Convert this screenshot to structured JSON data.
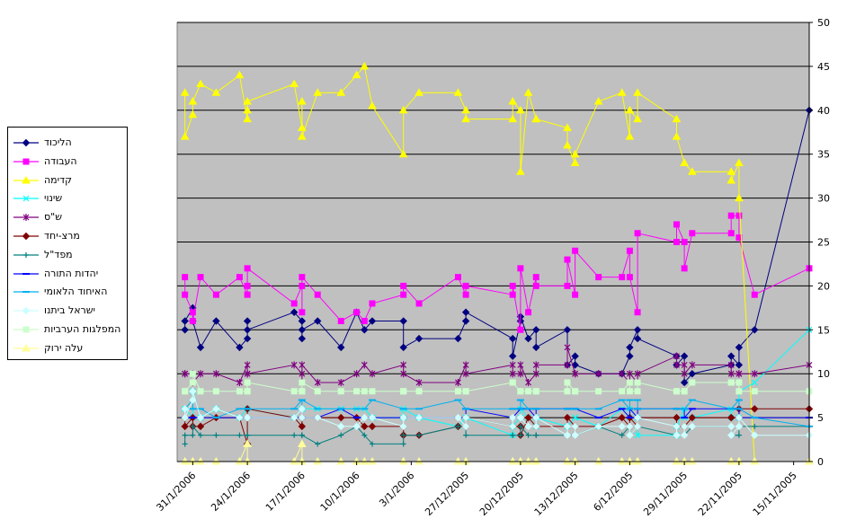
{
  "chart_data": {
    "type": "line",
    "title": "",
    "xlabel": "",
    "ylabel": "",
    "ylim": [
      0,
      50
    ],
    "yticks": [
      0,
      5,
      10,
      15,
      20,
      25,
      30,
      35,
      40,
      45,
      50
    ],
    "x_axis_reversed": true,
    "x_tick_labels": [
      "31/1/2006",
      "24/1/2006",
      "17/1/2006",
      "10/1/2006",
      "3/1/2006",
      "27/12/2005",
      "20/12/2005",
      "13/12/2005",
      "6/12/2005",
      "29/11/2005",
      "22/11/2005",
      "15/11/2005"
    ],
    "x": [
      "2006-02-01",
      "2006-02-01",
      "2006-01-31",
      "2006-01-31",
      "2006-01-30",
      "2006-01-28",
      "2006-01-25",
      "2006-01-24",
      "2006-01-24",
      "2006-01-24",
      "2006-01-18",
      "2006-01-17",
      "2006-01-17",
      "2006-01-17",
      "2006-01-15",
      "2006-01-12",
      "2006-01-10",
      "2006-01-09",
      "2006-01-08",
      "2006-01-04",
      "2006-01-04",
      "2006-01-02",
      "2005-12-28",
      "2005-12-27",
      "2005-12-27",
      "2005-12-21",
      "2005-12-21",
      "2005-12-20",
      "2005-12-20",
      "2005-12-19",
      "2005-12-18",
      "2005-12-18",
      "2005-12-14",
      "2005-12-14",
      "2005-12-13",
      "2005-12-13",
      "2005-12-10",
      "2005-12-07",
      "2005-12-06",
      "2005-12-06",
      "2005-12-05",
      "2005-12-05",
      "2005-11-30",
      "2005-11-30",
      "2005-11-29",
      "2005-11-29",
      "2005-11-28",
      "2005-11-23",
      "2005-11-23",
      "2005-11-22",
      "2005-11-22",
      "2005-11-20",
      "2005-11-13"
    ],
    "legend_position": "left",
    "grid": true,
    "series": [
      {
        "name": "הליכוד",
        "color": "#000080",
        "marker": "diamond",
        "values": [
          15,
          16,
          17.5,
          16,
          13,
          16,
          13,
          14,
          16,
          15,
          17,
          16,
          14,
          15,
          16,
          13,
          17,
          15,
          16,
          16,
          13,
          14,
          14,
          16,
          17,
          14,
          12,
          16,
          16.5,
          14,
          15,
          13,
          15,
          11,
          12,
          11,
          10,
          10,
          12,
          13,
          15,
          14,
          12,
          11,
          12,
          9,
          10,
          11,
          12,
          11,
          13,
          15,
          40
        ]
      },
      {
        "name": "העבודה",
        "color": "#FF00FF",
        "marker": "square",
        "values": [
          21,
          19,
          17,
          16,
          21,
          19,
          21,
          19,
          20,
          22,
          18,
          20,
          17,
          21,
          19,
          16,
          17,
          16,
          18,
          19,
          20,
          18,
          21,
          19,
          20,
          19,
          20,
          15,
          22,
          17,
          21,
          20,
          20,
          23,
          19,
          24,
          21,
          21,
          24,
          21,
          17,
          26,
          25,
          27,
          25,
          22,
          26,
          26,
          28,
          28,
          25.5,
          19,
          22
        ]
      },
      {
        "name": "קדימה",
        "color": "#FFFF00",
        "marker": "triangle",
        "values": [
          42,
          37,
          39.5,
          41,
          43,
          42,
          44,
          39,
          40,
          41,
          43,
          38,
          41,
          37,
          42,
          42,
          44,
          45,
          40.5,
          35,
          40,
          42,
          42,
          40,
          39,
          39,
          41,
          40,
          33,
          42,
          39,
          39,
          38,
          36,
          34,
          35,
          41,
          42,
          37,
          40,
          39,
          42,
          39,
          37,
          34,
          34,
          33,
          33,
          32,
          34,
          30,
          0,
          0
        ]
      },
      {
        "name": "שינוי",
        "color": "#00FFFF",
        "marker": "x",
        "values": [
          6,
          6,
          5,
          8,
          5,
          6,
          5,
          6,
          6,
          6,
          5,
          6,
          6,
          6,
          6,
          6,
          6,
          6,
          5,
          5,
          6,
          5,
          4,
          5,
          5,
          3,
          4,
          5,
          6,
          5,
          4,
          5,
          4,
          4,
          5,
          5,
          4,
          6,
          5,
          6,
          5,
          3,
          3,
          4,
          6,
          5,
          5,
          6,
          5,
          5,
          8,
          9,
          15
        ]
      },
      {
        "name": "ש\"ס",
        "color": "#800080",
        "marker": "star",
        "values": [
          10,
          10,
          10,
          9,
          10,
          10,
          9,
          11,
          10,
          10,
          11,
          10,
          9,
          11,
          9,
          9,
          10,
          11,
          10,
          11,
          10,
          9,
          9,
          11,
          10,
          11,
          10,
          10,
          11,
          9,
          10,
          11,
          11,
          13,
          10,
          10,
          10,
          10,
          9,
          10,
          9,
          10,
          12,
          11,
          11,
          10,
          11,
          11,
          10,
          10,
          10,
          10,
          11
        ]
      },
      {
        "name": "מרצ-יחד",
        "color": "#800000",
        "marker": "diamond",
        "values": [
          5,
          4,
          5,
          4,
          4,
          5,
          5,
          2,
          5,
          6,
          5,
          4,
          5,
          5,
          5,
          5,
          5,
          4,
          4,
          4,
          3,
          3,
          4,
          4,
          5,
          4,
          4,
          4,
          3,
          5,
          4,
          4,
          4,
          5,
          4,
          4,
          4,
          5,
          4,
          5,
          4,
          5,
          5,
          4,
          4,
          4,
          5,
          5,
          5,
          5,
          6,
          6,
          6
        ]
      },
      {
        "name": "מפד\"ל",
        "color": "#008080",
        "marker": "plus",
        "values": [
          2,
          3,
          3,
          4,
          3,
          3,
          3,
          3,
          3,
          3,
          3,
          3,
          3,
          3,
          2,
          3,
          4,
          3,
          2,
          2,
          3,
          3,
          4,
          4,
          3,
          3,
          3,
          3,
          4,
          3,
          3,
          3,
          3,
          3,
          3,
          3,
          4,
          3,
          4,
          3,
          4,
          4,
          3,
          3,
          3,
          3,
          4,
          4,
          3,
          3,
          4,
          4,
          4
        ]
      },
      {
        "name": "יהדות התורה",
        "color": "#0000FF",
        "marker": "dash",
        "values": [
          5,
          5,
          5,
          5,
          5,
          5,
          5,
          5,
          5,
          5,
          5,
          5,
          6,
          5,
          5,
          6,
          5,
          5,
          5,
          5,
          5,
          5,
          5,
          5,
          6,
          5,
          5,
          6,
          6,
          6,
          5,
          6,
          6,
          6,
          6,
          6,
          5,
          6,
          5,
          6,
          5,
          6,
          6,
          6,
          6,
          5,
          6,
          6,
          6,
          6,
          5,
          5,
          5
        ]
      },
      {
        "name": "האיחוד הלאומי",
        "color": "#00B0F0",
        "marker": "dash",
        "values": [
          6,
          6,
          7,
          6,
          6,
          5,
          6,
          6,
          6,
          6,
          6,
          7,
          6,
          7,
          6,
          6,
          6,
          6,
          7,
          6,
          6,
          6,
          7,
          6,
          6,
          6,
          6,
          6,
          7,
          6,
          6,
          6,
          6,
          6,
          6,
          6,
          6,
          7,
          6,
          7,
          7,
          6,
          6,
          6,
          6,
          6,
          7,
          6,
          6,
          7,
          6,
          5,
          4
        ]
      },
      {
        "name": "ישראל ביתנו",
        "color": "#CCFFFF",
        "marker": "diamond",
        "values": [
          6,
          5,
          7,
          8,
          5,
          6,
          5,
          5,
          5,
          5,
          5,
          6,
          6,
          5,
          5,
          4,
          4,
          5,
          5,
          4,
          5,
          5,
          5,
          4,
          5,
          4,
          5,
          5,
          5,
          4,
          4,
          5,
          3,
          4,
          4,
          3,
          4,
          4,
          4,
          3,
          4,
          5,
          4,
          3,
          3,
          4,
          4,
          4,
          3,
          4,
          5,
          3,
          3
        ]
      },
      {
        "name": "המפלגות הערביות",
        "color": "#CCFFCC",
        "marker": "square",
        "values": [
          8,
          8,
          9,
          10,
          8,
          8,
          8,
          8,
          8,
          9,
          8,
          8,
          8,
          9,
          8,
          8,
          8,
          8,
          8,
          8,
          8,
          8,
          8,
          8,
          8,
          9,
          9,
          8,
          8,
          8,
          8,
          8,
          8,
          9,
          8,
          8,
          8,
          8,
          9,
          8,
          8,
          9,
          8,
          8,
          8,
          8,
          9,
          9,
          9,
          9,
          8,
          8,
          8
        ]
      },
      {
        "name": "עלה ירוק",
        "color": "#FFFF99",
        "marker": "triangle",
        "values": [
          0,
          0,
          0,
          0,
          0,
          0,
          0,
          2,
          0,
          0,
          0,
          2,
          0,
          0,
          0,
          0,
          0,
          0,
          0,
          0,
          0,
          0,
          0,
          0,
          0,
          0,
          0,
          0,
          0,
          0,
          0,
          0,
          0,
          0,
          0,
          0,
          0,
          0,
          0,
          0,
          0,
          0,
          0,
          0,
          0,
          0,
          0,
          0,
          0,
          0,
          0,
          0,
          0
        ]
      }
    ]
  }
}
